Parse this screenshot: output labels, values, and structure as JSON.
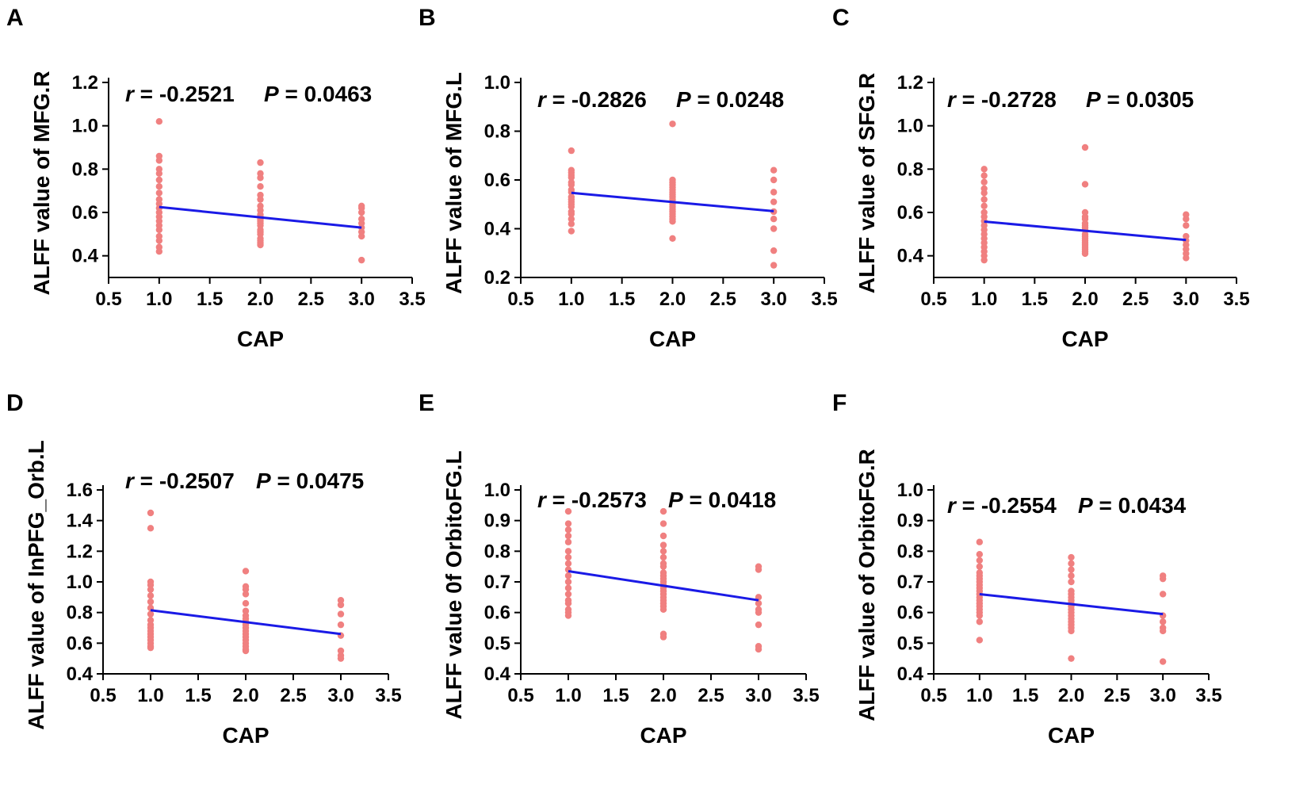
{
  "colors": {
    "points": "#f08080",
    "fit_line": "#1a1ae6",
    "axes": "#000000"
  },
  "chart_data": [
    {
      "type": "scatter",
      "panel": "A",
      "xlabel": "CAP",
      "ylabel": "ALFF value of MFG.R",
      "stat_r_label": "r",
      "stat_r_value": "= -0.2521",
      "stat_p_label": "P",
      "stat_p_value": "= 0.0463",
      "xlim": [
        0.5,
        3.5
      ],
      "ylim": [
        0.3,
        1.2
      ],
      "xticks": [
        "0.5",
        "1.0",
        "1.5",
        "2.0",
        "2.5",
        "3.0",
        "3.5"
      ],
      "yticks": [
        "0.4",
        "0.6",
        "0.8",
        "1.0",
        "1.2"
      ],
      "fit": {
        "x": [
          1.0,
          3.0
        ],
        "y": [
          0.625,
          0.53
        ]
      },
      "points": [
        [
          1,
          1.02
        ],
        [
          1,
          0.86
        ],
        [
          1,
          0.84
        ],
        [
          1,
          0.8
        ],
        [
          1,
          0.78
        ],
        [
          1,
          0.75
        ],
        [
          1,
          0.72
        ],
        [
          1,
          0.69
        ],
        [
          1,
          0.66
        ],
        [
          1,
          0.64
        ],
        [
          1,
          0.62
        ],
        [
          1,
          0.6
        ],
        [
          1,
          0.58
        ],
        [
          1,
          0.56
        ],
        [
          1,
          0.54
        ],
        [
          1,
          0.52
        ],
        [
          1,
          0.49
        ],
        [
          1,
          0.47
        ],
        [
          1,
          0.44
        ],
        [
          1,
          0.42
        ],
        [
          2,
          0.83
        ],
        [
          2,
          0.78
        ],
        [
          2,
          0.76
        ],
        [
          2,
          0.72
        ],
        [
          2,
          0.68
        ],
        [
          2,
          0.66
        ],
        [
          2,
          0.63
        ],
        [
          2,
          0.61
        ],
        [
          2,
          0.59
        ],
        [
          2,
          0.58
        ],
        [
          2,
          0.57
        ],
        [
          2,
          0.56
        ],
        [
          2,
          0.55
        ],
        [
          2,
          0.54
        ],
        [
          2,
          0.52
        ],
        [
          2,
          0.51
        ],
        [
          2,
          0.5
        ],
        [
          2,
          0.48
        ],
        [
          2,
          0.47
        ],
        [
          2,
          0.46
        ],
        [
          2,
          0.45
        ],
        [
          3,
          0.63
        ],
        [
          3,
          0.62
        ],
        [
          3,
          0.6
        ],
        [
          3,
          0.57
        ],
        [
          3,
          0.55
        ],
        [
          3,
          0.53
        ],
        [
          3,
          0.51
        ],
        [
          3,
          0.49
        ],
        [
          3,
          0.38
        ]
      ]
    },
    {
      "type": "scatter",
      "panel": "B",
      "xlabel": "CAP",
      "ylabel": "ALFF value of MFG.L",
      "stat_r_label": "r",
      "stat_r_value": "= -0.2826",
      "stat_p_label": "P",
      "stat_p_value": "= 0.0248",
      "xlim": [
        0.5,
        3.5
      ],
      "ylim": [
        0.2,
        1.0
      ],
      "xticks": [
        "0.5",
        "1.0",
        "1.5",
        "2.0",
        "2.5",
        "3.0",
        "3.5"
      ],
      "yticks": [
        "0.2",
        "0.4",
        "0.6",
        "0.8",
        "1.0"
      ],
      "fit": {
        "x": [
          1.0,
          3.0
        ],
        "y": [
          0.547,
          0.472
        ]
      },
      "points": [
        [
          1,
          0.72
        ],
        [
          1,
          0.64
        ],
        [
          1,
          0.63
        ],
        [
          1,
          0.62
        ],
        [
          1,
          0.61
        ],
        [
          1,
          0.59
        ],
        [
          1,
          0.58
        ],
        [
          1,
          0.56
        ],
        [
          1,
          0.55
        ],
        [
          1,
          0.53
        ],
        [
          1,
          0.52
        ],
        [
          1,
          0.51
        ],
        [
          1,
          0.5
        ],
        [
          1,
          0.49
        ],
        [
          1,
          0.47
        ],
        [
          1,
          0.46
        ],
        [
          1,
          0.44
        ],
        [
          1,
          0.42
        ],
        [
          1,
          0.39
        ],
        [
          2,
          0.83
        ],
        [
          2,
          0.6
        ],
        [
          2,
          0.59
        ],
        [
          2,
          0.58
        ],
        [
          2,
          0.57
        ],
        [
          2,
          0.56
        ],
        [
          2,
          0.55
        ],
        [
          2,
          0.54
        ],
        [
          2,
          0.53
        ],
        [
          2,
          0.52
        ],
        [
          2,
          0.51
        ],
        [
          2,
          0.5
        ],
        [
          2,
          0.49
        ],
        [
          2,
          0.48
        ],
        [
          2,
          0.47
        ],
        [
          2,
          0.46
        ],
        [
          2,
          0.45
        ],
        [
          2,
          0.44
        ],
        [
          2,
          0.43
        ],
        [
          2,
          0.36
        ],
        [
          3,
          0.64
        ],
        [
          3,
          0.6
        ],
        [
          3,
          0.55
        ],
        [
          3,
          0.51
        ],
        [
          3,
          0.47
        ],
        [
          3,
          0.44
        ],
        [
          3,
          0.4
        ],
        [
          3,
          0.31
        ],
        [
          3,
          0.25
        ]
      ]
    },
    {
      "type": "scatter",
      "panel": "C",
      "xlabel": "CAP",
      "ylabel": "ALFF value of SFG.R",
      "stat_r_label": "r",
      "stat_r_value": "= -0.2728",
      "stat_p_label": "P",
      "stat_p_value": "= 0.0305",
      "xlim": [
        0.5,
        3.5
      ],
      "ylim": [
        0.3,
        1.2
      ],
      "xticks": [
        "0.5",
        "1.0",
        "1.5",
        "2.0",
        "2.5",
        "3.0",
        "3.5"
      ],
      "yticks": [
        "0.4",
        "0.6",
        "0.8",
        "1.0",
        "1.2"
      ],
      "fit": {
        "x": [
          1.0,
          3.0
        ],
        "y": [
          0.558,
          0.473
        ]
      },
      "points": [
        [
          1,
          0.8
        ],
        [
          1,
          0.77
        ],
        [
          1,
          0.74
        ],
        [
          1,
          0.71
        ],
        [
          1,
          0.69
        ],
        [
          1,
          0.66
        ],
        [
          1,
          0.63
        ],
        [
          1,
          0.6
        ],
        [
          1,
          0.58
        ],
        [
          1,
          0.56
        ],
        [
          1,
          0.54
        ],
        [
          1,
          0.52
        ],
        [
          1,
          0.5
        ],
        [
          1,
          0.48
        ],
        [
          1,
          0.46
        ],
        [
          1,
          0.44
        ],
        [
          1,
          0.42
        ],
        [
          1,
          0.4
        ],
        [
          1,
          0.38
        ],
        [
          2,
          0.9
        ],
        [
          2,
          0.73
        ],
        [
          2,
          0.6
        ],
        [
          2,
          0.58
        ],
        [
          2,
          0.57
        ],
        [
          2,
          0.55
        ],
        [
          2,
          0.54
        ],
        [
          2,
          0.53
        ],
        [
          2,
          0.52
        ],
        [
          2,
          0.5
        ],
        [
          2,
          0.49
        ],
        [
          2,
          0.48
        ],
        [
          2,
          0.47
        ],
        [
          2,
          0.46
        ],
        [
          2,
          0.45
        ],
        [
          2,
          0.44
        ],
        [
          2,
          0.43
        ],
        [
          2,
          0.42
        ],
        [
          2,
          0.41
        ],
        [
          3,
          0.59
        ],
        [
          3,
          0.57
        ],
        [
          3,
          0.54
        ],
        [
          3,
          0.49
        ],
        [
          3,
          0.47
        ],
        [
          3,
          0.45
        ],
        [
          3,
          0.43
        ],
        [
          3,
          0.41
        ],
        [
          3,
          0.39
        ]
      ]
    },
    {
      "type": "scatter",
      "panel": "D",
      "xlabel": "CAP",
      "ylabel": "ALFF value of InPFG_Orb.L",
      "stat_r_label": "r",
      "stat_r_value": "= -0.2507",
      "stat_p_label": "P",
      "stat_p_value": "= 0.0475",
      "xlim": [
        0.5,
        3.5
      ],
      "ylim": [
        0.4,
        1.6
      ],
      "xticks": [
        "0.5",
        "1.0",
        "1.5",
        "2.0",
        "2.5",
        "3.0",
        "3.5"
      ],
      "yticks": [
        "0.4",
        "0.6",
        "0.8",
        "1.0",
        "1.2",
        "1.4",
        "1.6"
      ],
      "fit": {
        "x": [
          1.0,
          3.0
        ],
        "y": [
          0.815,
          0.66
        ]
      },
      "points": [
        [
          1,
          1.45
        ],
        [
          1,
          1.35
        ],
        [
          1,
          1.0
        ],
        [
          1,
          0.98
        ],
        [
          1,
          0.95
        ],
        [
          1,
          0.91
        ],
        [
          1,
          0.87
        ],
        [
          1,
          0.83
        ],
        [
          1,
          0.79
        ],
        [
          1,
          0.75
        ],
        [
          1,
          0.72
        ],
        [
          1,
          0.7
        ],
        [
          1,
          0.68
        ],
        [
          1,
          0.66
        ],
        [
          1,
          0.64
        ],
        [
          1,
          0.62
        ],
        [
          1,
          0.6
        ],
        [
          1,
          0.58
        ],
        [
          1,
          0.57
        ],
        [
          2,
          1.07
        ],
        [
          2,
          0.97
        ],
        [
          2,
          0.95
        ],
        [
          2,
          0.92
        ],
        [
          2,
          0.86
        ],
        [
          2,
          0.81
        ],
        [
          2,
          0.78
        ],
        [
          2,
          0.76
        ],
        [
          2,
          0.74
        ],
        [
          2,
          0.72
        ],
        [
          2,
          0.7
        ],
        [
          2,
          0.68
        ],
        [
          2,
          0.66
        ],
        [
          2,
          0.64
        ],
        [
          2,
          0.62
        ],
        [
          2,
          0.6
        ],
        [
          2,
          0.58
        ],
        [
          2,
          0.56
        ],
        [
          2,
          0.55
        ],
        [
          3,
          0.88
        ],
        [
          3,
          0.85
        ],
        [
          3,
          0.79
        ],
        [
          3,
          0.72
        ],
        [
          3,
          0.65
        ],
        [
          3,
          0.55
        ],
        [
          3,
          0.52
        ],
        [
          3,
          0.5
        ]
      ]
    },
    {
      "type": "scatter",
      "panel": "E",
      "xlabel": "CAP",
      "ylabel": "ALFF value 0f OrbitoFG.L",
      "stat_r_label": "r",
      "stat_r_value": "= -0.2573",
      "stat_p_label": "P",
      "stat_p_value": "= 0.0418",
      "xlim": [
        0.5,
        3.5
      ],
      "ylim": [
        0.4,
        1.0
      ],
      "xticks": [
        "0.5",
        "1.0",
        "1.5",
        "2.0",
        "2.5",
        "3.0",
        "3.5"
      ],
      "yticks": [
        "0.4",
        "0.5",
        "0.6",
        "0.7",
        "0.8",
        "0.9",
        "1.0"
      ],
      "fit": {
        "x": [
          1.0,
          3.0
        ],
        "y": [
          0.735,
          0.64
        ]
      },
      "points": [
        [
          1,
          0.93
        ],
        [
          1,
          0.89
        ],
        [
          1,
          0.87
        ],
        [
          1,
          0.85
        ],
        [
          1,
          0.83
        ],
        [
          1,
          0.8
        ],
        [
          1,
          0.78
        ],
        [
          1,
          0.76
        ],
        [
          1,
          0.74
        ],
        [
          1,
          0.72
        ],
        [
          1,
          0.7
        ],
        [
          1,
          0.68
        ],
        [
          1,
          0.66
        ],
        [
          1,
          0.64
        ],
        [
          1,
          0.63
        ],
        [
          1,
          0.61
        ],
        [
          1,
          0.6
        ],
        [
          1,
          0.59
        ],
        [
          2,
          0.93
        ],
        [
          2,
          0.89
        ],
        [
          2,
          0.85
        ],
        [
          2,
          0.82
        ],
        [
          2,
          0.8
        ],
        [
          2,
          0.78
        ],
        [
          2,
          0.76
        ],
        [
          2,
          0.75
        ],
        [
          2,
          0.73
        ],
        [
          2,
          0.72
        ],
        [
          2,
          0.71
        ],
        [
          2,
          0.7
        ],
        [
          2,
          0.69
        ],
        [
          2,
          0.68
        ],
        [
          2,
          0.67
        ],
        [
          2,
          0.66
        ],
        [
          2,
          0.65
        ],
        [
          2,
          0.64
        ],
        [
          2,
          0.63
        ],
        [
          2,
          0.62
        ],
        [
          2,
          0.61
        ],
        [
          2,
          0.53
        ],
        [
          2,
          0.52
        ],
        [
          3,
          0.75
        ],
        [
          3,
          0.74
        ],
        [
          3,
          0.65
        ],
        [
          3,
          0.63
        ],
        [
          3,
          0.61
        ],
        [
          3,
          0.6
        ],
        [
          3,
          0.56
        ],
        [
          3,
          0.49
        ],
        [
          3,
          0.48
        ]
      ]
    },
    {
      "type": "scatter",
      "panel": "F",
      "xlabel": "CAP",
      "ylabel": "ALFF value of OrbitoFG.R",
      "stat_r_label": "r",
      "stat_r_value": "= -0.2554",
      "stat_p_label": "P",
      "stat_p_value": "= 0.0434",
      "xlim": [
        0.5,
        3.5
      ],
      "ylim": [
        0.4,
        1.0
      ],
      "xticks": [
        "0.5",
        "1.0",
        "1.5",
        "2.0",
        "2.5",
        "3.0",
        "3.5"
      ],
      "yticks": [
        "0.4",
        "0.5",
        "0.6",
        "0.7",
        "0.8",
        "0.9",
        "1.0"
      ],
      "fit": {
        "x": [
          1.0,
          3.0
        ],
        "y": [
          0.66,
          0.595
        ]
      },
      "points": [
        [
          1,
          0.83
        ],
        [
          1,
          0.79
        ],
        [
          1,
          0.77
        ],
        [
          1,
          0.75
        ],
        [
          1,
          0.73
        ],
        [
          1,
          0.72
        ],
        [
          1,
          0.71
        ],
        [
          1,
          0.7
        ],
        [
          1,
          0.69
        ],
        [
          1,
          0.68
        ],
        [
          1,
          0.67
        ],
        [
          1,
          0.66
        ],
        [
          1,
          0.65
        ],
        [
          1,
          0.64
        ],
        [
          1,
          0.63
        ],
        [
          1,
          0.62
        ],
        [
          1,
          0.61
        ],
        [
          1,
          0.6
        ],
        [
          1,
          0.59
        ],
        [
          1,
          0.57
        ],
        [
          1,
          0.51
        ],
        [
          2,
          0.78
        ],
        [
          2,
          0.76
        ],
        [
          2,
          0.74
        ],
        [
          2,
          0.72
        ],
        [
          2,
          0.7
        ],
        [
          2,
          0.67
        ],
        [
          2,
          0.66
        ],
        [
          2,
          0.65
        ],
        [
          2,
          0.64
        ],
        [
          2,
          0.63
        ],
        [
          2,
          0.62
        ],
        [
          2,
          0.61
        ],
        [
          2,
          0.6
        ],
        [
          2,
          0.59
        ],
        [
          2,
          0.58
        ],
        [
          2,
          0.57
        ],
        [
          2,
          0.56
        ],
        [
          2,
          0.55
        ],
        [
          2,
          0.54
        ],
        [
          2,
          0.45
        ],
        [
          3,
          0.72
        ],
        [
          3,
          0.71
        ],
        [
          3,
          0.66
        ],
        [
          3,
          0.59
        ],
        [
          3,
          0.57
        ],
        [
          3,
          0.55
        ],
        [
          3,
          0.54
        ],
        [
          3,
          0.44
        ]
      ]
    }
  ]
}
